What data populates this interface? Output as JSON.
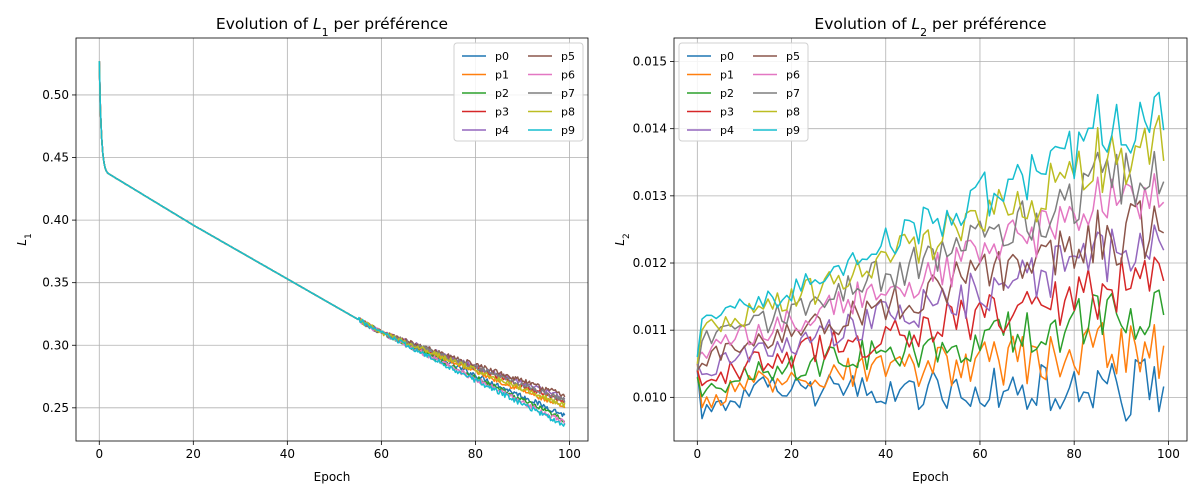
{
  "figure": {
    "background": "#ffffff"
  },
  "chart_data": [
    {
      "type": "line",
      "title_parts": [
        "Evolution of ",
        "L",
        "1",
        " per préférence"
      ],
      "title": "Evolution of L_1 per préférence",
      "xlabel": "Epoch",
      "ylabel": "L",
      "ylabel_sub": "1",
      "xlim": [
        -4.95,
        103.95
      ],
      "ylim": [
        0.2235,
        0.5455
      ],
      "xticks": [
        0,
        20,
        40,
        60,
        80,
        100
      ],
      "yticks": [
        0.25,
        0.3,
        0.35,
        0.4,
        0.45,
        0.5
      ],
      "ytick_labels": [
        "0.25",
        "0.30",
        "0.35",
        "0.40",
        "0.45",
        "0.50"
      ],
      "grid": true,
      "legend": {
        "placement": "top-right",
        "columns": 2
      },
      "model": "l1",
      "end_values": [
        0.244,
        0.25,
        0.24,
        0.255,
        0.258,
        0.26,
        0.238,
        0.256,
        0.252,
        0.236
      ],
      "series": [
        {
          "name": "p0",
          "color": "#1f77b4"
        },
        {
          "name": "p1",
          "color": "#ff7f0e"
        },
        {
          "name": "p2",
          "color": "#2ca02c"
        },
        {
          "name": "p3",
          "color": "#d62728"
        },
        {
          "name": "p4",
          "color": "#9467bd"
        },
        {
          "name": "p5",
          "color": "#8c564b"
        },
        {
          "name": "p6",
          "color": "#e377c2"
        },
        {
          "name": "p7",
          "color": "#7f7f7f"
        },
        {
          "name": "p8",
          "color": "#bcbd22"
        },
        {
          "name": "p9",
          "color": "#17becf"
        }
      ]
    },
    {
      "type": "line",
      "title_parts": [
        "Evolution of ",
        "L",
        "2",
        " per préférence"
      ],
      "title": "Evolution of L_2 per préférence",
      "xlabel": "Epoch",
      "ylabel": "L",
      "ylabel_sub": "2",
      "xlim": [
        -4.95,
        103.95
      ],
      "ylim": [
        0.00935,
        0.01535
      ],
      "xticks": [
        0,
        20,
        40,
        60,
        80,
        100
      ],
      "yticks": [
        0.01,
        0.011,
        0.012,
        0.013,
        0.014,
        0.015
      ],
      "ytick_labels": [
        "0.010",
        "0.011",
        "0.012",
        "0.013",
        "0.014",
        "0.015"
      ],
      "grid": true,
      "legend": {
        "placement": "top-left",
        "columns": 2
      },
      "model": "l2",
      "start_values": [
        0.0104,
        0.0105,
        0.0103,
        0.0104,
        0.0105,
        0.0104,
        0.0106,
        0.0104,
        0.0105,
        0.0106
      ],
      "end_values": [
        0.0101,
        0.01075,
        0.01125,
        0.0118,
        0.0123,
        0.0126,
        0.0131,
        0.01345,
        0.0138,
        0.0143
      ],
      "series": [
        {
          "name": "p0",
          "color": "#1f77b4"
        },
        {
          "name": "p1",
          "color": "#ff7f0e"
        },
        {
          "name": "p2",
          "color": "#2ca02c"
        },
        {
          "name": "p3",
          "color": "#d62728"
        },
        {
          "name": "p4",
          "color": "#9467bd"
        },
        {
          "name": "p5",
          "color": "#8c564b"
        },
        {
          "name": "p6",
          "color": "#e377c2"
        },
        {
          "name": "p7",
          "color": "#7f7f7f"
        },
        {
          "name": "p8",
          "color": "#bcbd22"
        },
        {
          "name": "p9",
          "color": "#17becf"
        }
      ]
    }
  ]
}
